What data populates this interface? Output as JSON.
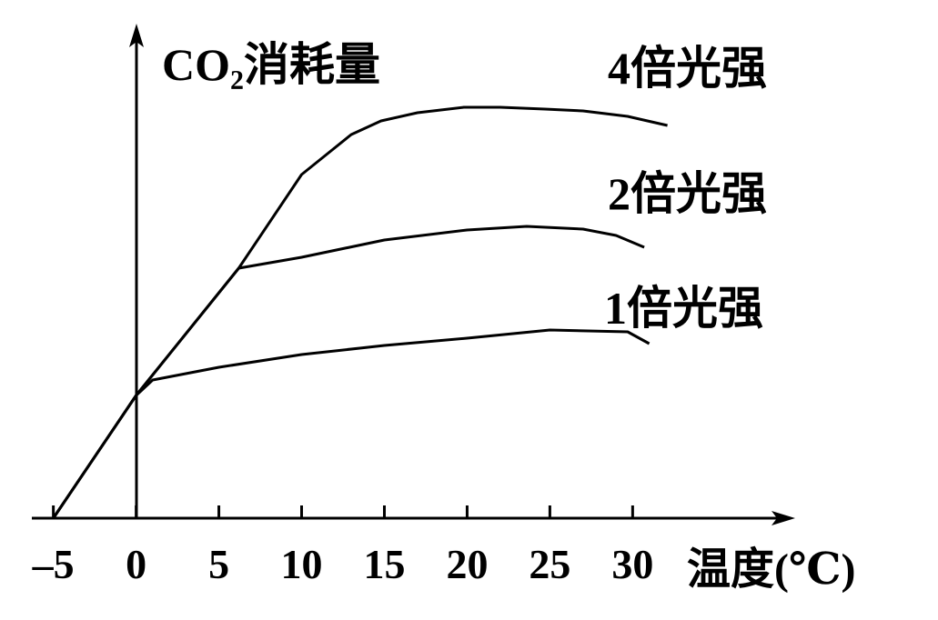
{
  "chart_data": {
    "type": "line",
    "title": "CO₂消耗量",
    "x_label": "温度(℃)",
    "xlim": [
      -6.3,
      39.6
    ],
    "xticks": [
      {
        "value": -5,
        "label": "–5"
      },
      0,
      5,
      10,
      15,
      20,
      25,
      30
    ],
    "ylim": [
      0,
      54
    ],
    "series": [
      {
        "name": "4倍光强",
        "color": "#000000",
        "x": [
          -5,
          0,
          6.2,
          10,
          11.5,
          13,
          14.8,
          17,
          19.8,
          22,
          24.7,
          27,
          29.7,
          32.1
        ],
        "values": [
          0,
          13.5,
          27.5,
          37.8,
          40,
          42.2,
          43.7,
          44.6,
          45.2,
          45.2,
          45,
          44.8,
          44.2,
          43.2
        ]
      },
      {
        "name": "2倍光强",
        "color": "#000000",
        "x": [
          -5,
          0,
          6.2,
          10,
          15,
          20,
          23.6,
          27,
          29,
          30.7
        ],
        "values": [
          0,
          13.5,
          27.5,
          28.7,
          30.6,
          31.7,
          32.1,
          31.8,
          31.1,
          29.8
        ]
      },
      {
        "name": "1倍光强",
        "color": "#000000",
        "x": [
          -5,
          0,
          1,
          5,
          10,
          15,
          20,
          25,
          29.7,
          31
        ],
        "values": [
          0,
          13.5,
          15.2,
          16.6,
          18,
          19,
          19.8,
          20.7,
          20.5,
          19.2
        ]
      }
    ]
  }
}
